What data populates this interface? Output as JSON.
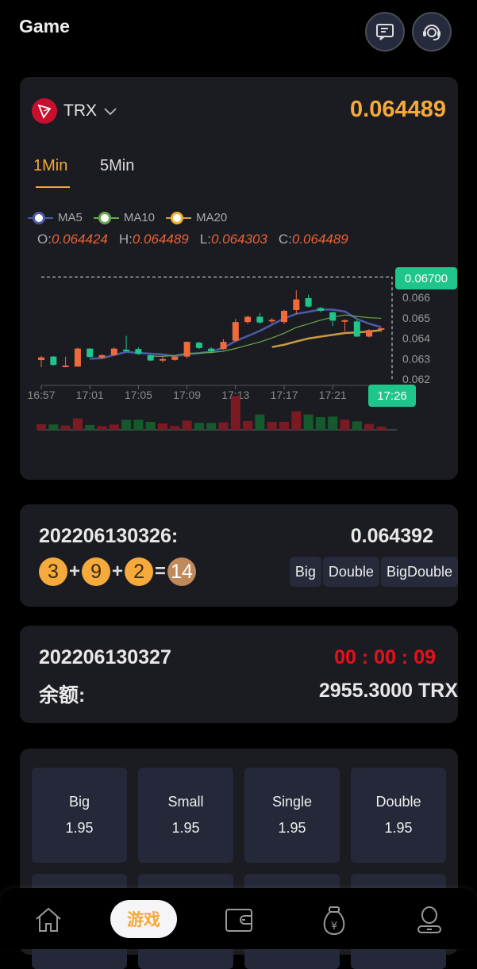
{
  "header": {
    "title": "Game",
    "icons": [
      "message-icon",
      "customer-service-icon"
    ]
  },
  "ticker": {
    "coin": "TRX",
    "price": "0.064489",
    "tabs": [
      {
        "label": "1Min",
        "active": true
      },
      {
        "label": "5Min",
        "active": false
      }
    ],
    "legend": [
      {
        "label": "MA5",
        "color": "#4a5ca8"
      },
      {
        "label": "MA10",
        "color": "#6aa84f"
      },
      {
        "label": "MA20",
        "color": "#d4a040"
      }
    ],
    "ohlc": {
      "o_label": "O:",
      "o": "0.064424",
      "h_label": "H:",
      "h": "0.064489",
      "l_label": "L:",
      "l": "0.064303",
      "c_label": "C:",
      "c": "0.064489"
    },
    "crosshair_price": "0.06700",
    "crosshair_time": "17:26"
  },
  "chart_data": {
    "type": "candlestick",
    "y_ticks": [
      "0.066",
      "0.065",
      "0.064",
      "0.063",
      "0.062"
    ],
    "ylim": [
      0.062,
      0.067
    ],
    "x_ticks": [
      "16:57",
      "17:01",
      "17:05",
      "17:09",
      "17:13",
      "17:17",
      "17:21"
    ],
    "up_color": "#f06a3c",
    "down_color": "#1fc58a",
    "candles": [
      {
        "t": "16:57",
        "o": 0.06293,
        "h": 0.06313,
        "l": 0.06258,
        "c": 0.06306,
        "v": 21
      },
      {
        "t": "16:58",
        "o": 0.0631,
        "h": 0.06313,
        "l": 0.06265,
        "c": 0.06269,
        "v": 20
      },
      {
        "t": "16:59",
        "o": 0.06264,
        "h": 0.0631,
        "l": 0.06258,
        "c": 0.06266,
        "v": 16
      },
      {
        "t": "17:00",
        "o": 0.06261,
        "h": 0.06355,
        "l": 0.06261,
        "c": 0.06349,
        "v": 43
      },
      {
        "t": "17:01",
        "o": 0.06349,
        "h": 0.06352,
        "l": 0.06305,
        "c": 0.06308,
        "v": 18
      },
      {
        "t": "17:02",
        "o": 0.06304,
        "h": 0.06322,
        "l": 0.063,
        "c": 0.06317,
        "v": 14
      },
      {
        "t": "17:03",
        "o": 0.06317,
        "h": 0.06355,
        "l": 0.06314,
        "c": 0.06349,
        "v": 20
      },
      {
        "t": "17:04",
        "o": 0.06344,
        "h": 0.06412,
        "l": 0.06336,
        "c": 0.06342,
        "v": 38
      },
      {
        "t": "17:05",
        "o": 0.06347,
        "h": 0.06355,
        "l": 0.06318,
        "c": 0.06323,
        "v": 38
      },
      {
        "t": "17:06",
        "o": 0.06317,
        "h": 0.0632,
        "l": 0.06288,
        "c": 0.06291,
        "v": 30
      },
      {
        "t": "17:07",
        "o": 0.06296,
        "h": 0.0631,
        "l": 0.06282,
        "c": 0.06298,
        "v": 24
      },
      {
        "t": "17:08",
        "o": 0.06294,
        "h": 0.06313,
        "l": 0.0629,
        "c": 0.0631,
        "v": 14
      },
      {
        "t": "17:09",
        "o": 0.0631,
        "h": 0.06384,
        "l": 0.063,
        "c": 0.06382,
        "v": 35
      },
      {
        "t": "17:10",
        "o": 0.06378,
        "h": 0.06382,
        "l": 0.06347,
        "c": 0.06352,
        "v": 26
      },
      {
        "t": "17:11",
        "o": 0.06349,
        "h": 0.06355,
        "l": 0.06326,
        "c": 0.06336,
        "v": 26
      },
      {
        "t": "17:12",
        "o": 0.06347,
        "h": 0.06395,
        "l": 0.06343,
        "c": 0.06382,
        "v": 28
      },
      {
        "t": "17:13",
        "o": 0.06388,
        "h": 0.06495,
        "l": 0.0638,
        "c": 0.06479,
        "v": 128
      },
      {
        "t": "17:14",
        "o": 0.06479,
        "h": 0.0651,
        "l": 0.0647,
        "c": 0.06505,
        "v": 33
      },
      {
        "t": "17:15",
        "o": 0.06505,
        "h": 0.06523,
        "l": 0.0647,
        "c": 0.06477,
        "v": 58
      },
      {
        "t": "17:16",
        "o": 0.06487,
        "h": 0.06499,
        "l": 0.06473,
        "c": 0.0649,
        "v": 30
      },
      {
        "t": "17:17",
        "o": 0.06479,
        "h": 0.0654,
        "l": 0.0647,
        "c": 0.06534,
        "v": 30
      },
      {
        "t": "17:18",
        "o": 0.06538,
        "h": 0.06635,
        "l": 0.06518,
        "c": 0.0659,
        "v": 70
      },
      {
        "t": "17:19",
        "o": 0.06596,
        "h": 0.06613,
        "l": 0.0655,
        "c": 0.06555,
        "v": 58
      },
      {
        "t": "17:20",
        "o": 0.06548,
        "h": 0.06552,
        "l": 0.06527,
        "c": 0.06534,
        "v": 48
      },
      {
        "t": "17:21",
        "o": 0.06527,
        "h": 0.0653,
        "l": 0.0646,
        "c": 0.06486,
        "v": 50
      },
      {
        "t": "17:22",
        "o": 0.06486,
        "h": 0.06492,
        "l": 0.06434,
        "c": 0.06488,
        "v": 38
      },
      {
        "t": "17:23",
        "o": 0.06482,
        "h": 0.0649,
        "l": 0.06405,
        "c": 0.06408,
        "v": 32
      },
      {
        "t": "17:24",
        "o": 0.06408,
        "h": 0.06444,
        "l": 0.06403,
        "c": 0.0644,
        "v": 22
      },
      {
        "t": "17:25",
        "o": 0.064424,
        "h": 0.064489,
        "l": 0.064303,
        "c": 0.064489,
        "v": 12
      }
    ]
  },
  "last_round": {
    "period": "202206130326:",
    "price": "0.064392",
    "balls": [
      "3",
      "9",
      "2"
    ],
    "plus": "+",
    "equals": "=",
    "sum": "14",
    "tags": [
      "Big",
      "Double",
      "BigDouble"
    ]
  },
  "current_round": {
    "period": "202206130327",
    "countdown": "00 : 00 : 09",
    "balance_label": "余额:",
    "balance": "2955.3000 TRX"
  },
  "options": [
    {
      "name": "Big",
      "odds": "1.95"
    },
    {
      "name": "Small",
      "odds": "1.95"
    },
    {
      "name": "Single",
      "odds": "1.95"
    },
    {
      "name": "Double",
      "odds": "1.95"
    }
  ],
  "nav": {
    "items": [
      {
        "icon": "home-icon"
      },
      {
        "label": "游戏",
        "active": true
      },
      {
        "icon": "wallet-icon"
      },
      {
        "icon": "money-bag-icon"
      },
      {
        "icon": "user-icon"
      }
    ]
  }
}
